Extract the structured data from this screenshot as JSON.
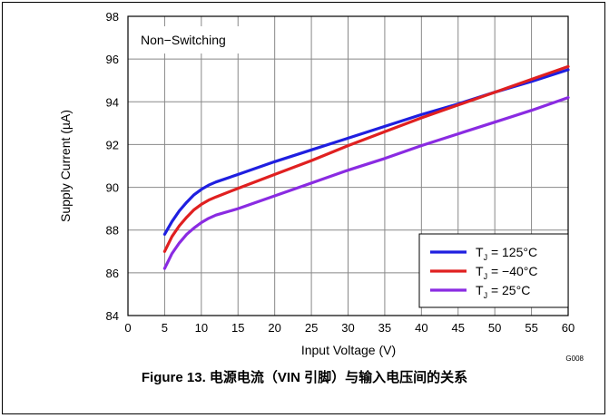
{
  "chart_data": {
    "type": "line",
    "annotation": "Non−Switching",
    "xlabel": "Input Voltage (V)",
    "ylabel": "Supply Current (µA)",
    "xlim": [
      0,
      60
    ],
    "ylim": [
      84,
      98
    ],
    "x_ticks": [
      0,
      5,
      10,
      15,
      20,
      25,
      30,
      35,
      40,
      45,
      50,
      55,
      60
    ],
    "y_ticks": [
      84,
      86,
      88,
      90,
      92,
      94,
      96,
      98
    ],
    "grid": true,
    "legend_position": "bottom-right",
    "series": [
      {
        "legend_main": "T",
        "legend_sub": "J",
        "legend_rest": " = 125°C",
        "color": "#1f1fe0",
        "x": [
          5,
          6,
          7,
          8,
          9,
          10,
          11,
          12,
          15,
          20,
          25,
          30,
          35,
          40,
          45,
          50,
          55,
          60
        ],
        "y": [
          87.8,
          88.4,
          88.9,
          89.3,
          89.65,
          89.9,
          90.1,
          90.25,
          90.6,
          91.2,
          91.75,
          92.3,
          92.85,
          93.4,
          93.9,
          94.45,
          94.95,
          95.5
        ]
      },
      {
        "legend_main": "T",
        "legend_sub": "J",
        "legend_rest": " = −40°C",
        "color": "#e02020",
        "x": [
          5,
          6,
          7,
          8,
          9,
          10,
          11,
          12,
          15,
          20,
          25,
          30,
          35,
          40,
          45,
          50,
          55,
          60
        ],
        "y": [
          87.0,
          87.7,
          88.2,
          88.6,
          88.95,
          89.2,
          89.4,
          89.55,
          89.95,
          90.6,
          91.25,
          91.95,
          92.6,
          93.25,
          93.85,
          94.45,
          95.05,
          95.65
        ]
      },
      {
        "legend_main": "T",
        "legend_sub": "J",
        "legend_rest": " = 25°C",
        "color": "#8a2be2",
        "x": [
          5,
          6,
          7,
          8,
          9,
          10,
          11,
          12,
          15,
          20,
          25,
          30,
          35,
          40,
          45,
          50,
          55,
          60
        ],
        "y": [
          86.2,
          86.9,
          87.4,
          87.8,
          88.1,
          88.35,
          88.55,
          88.7,
          89.0,
          89.6,
          90.2,
          90.8,
          91.35,
          91.95,
          92.5,
          93.05,
          93.6,
          94.2
        ]
      }
    ]
  },
  "figure_code": "G008",
  "caption": "Figure 13. 电源电流（VIN 引脚）与输入电压间的关系"
}
